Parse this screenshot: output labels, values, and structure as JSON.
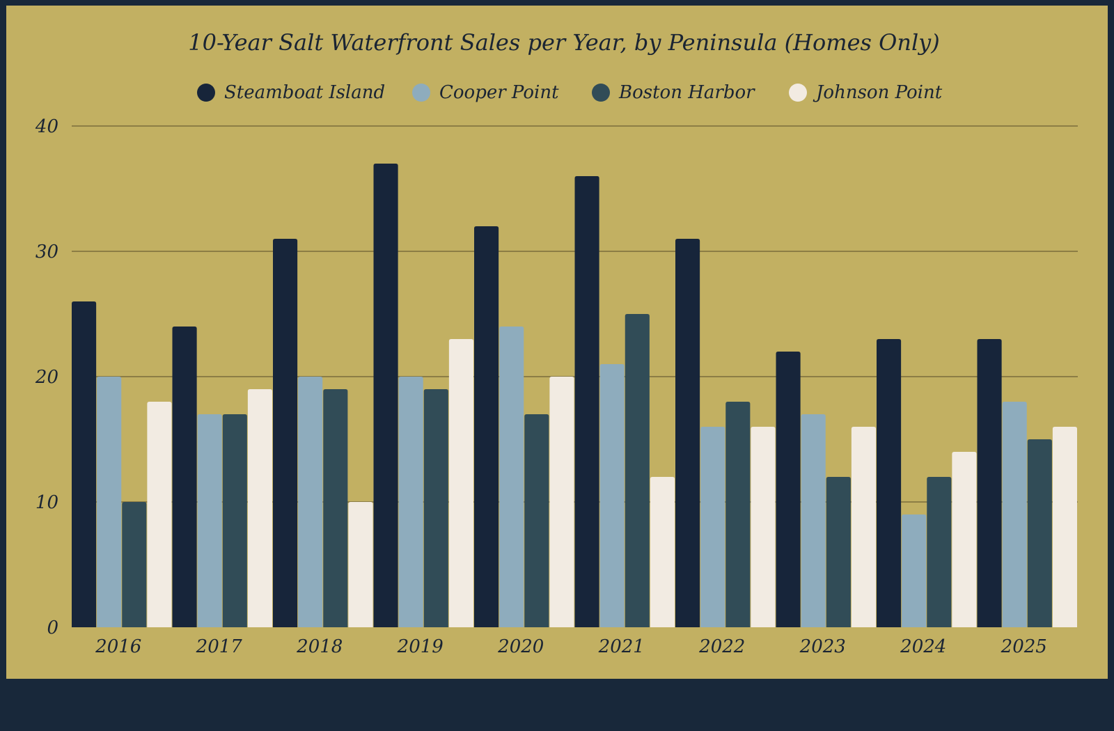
{
  "colors": {
    "page_background": "#18283a",
    "chart_background": "#c2b062",
    "gridline": "#8c7d45",
    "text": "#1a2433"
  },
  "chart_data": {
    "type": "bar",
    "title": "10-Year Salt Waterfront Sales per Year, by Peninsula (Homes Only)",
    "xlabel": "",
    "ylabel": "",
    "ylim": [
      0,
      40
    ],
    "yticks": [
      0,
      10,
      20,
      30,
      40
    ],
    "grid": true,
    "legend_position": "top-center",
    "categories": [
      "2016",
      "2017",
      "2018",
      "2019",
      "2020",
      "2021",
      "2022",
      "2023",
      "2024",
      "2025"
    ],
    "series": [
      {
        "name": "Steamboat Island",
        "color": "#17253a",
        "values": [
          26,
          24,
          31,
          37,
          32,
          36,
          31,
          22,
          23,
          23
        ]
      },
      {
        "name": "Cooper Point",
        "color": "#8eacbd",
        "values": [
          20,
          17,
          20,
          20,
          24,
          21,
          16,
          17,
          9,
          18
        ]
      },
      {
        "name": "Boston Harbor",
        "color": "#314c57",
        "values": [
          10,
          17,
          19,
          19,
          17,
          25,
          18,
          12,
          12,
          15
        ]
      },
      {
        "name": "Johnson Point",
        "color": "#f2ebe2",
        "values": [
          18,
          19,
          10,
          23,
          20,
          12,
          16,
          16,
          14,
          16
        ]
      }
    ]
  }
}
